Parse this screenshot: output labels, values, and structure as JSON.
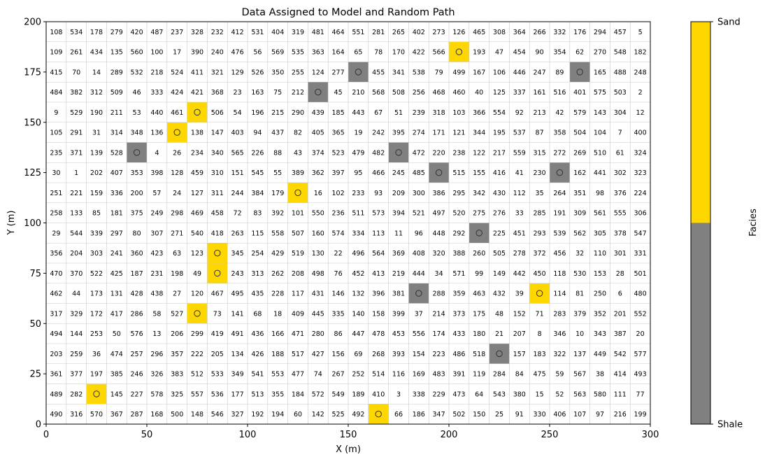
{
  "chart_data": {
    "type": "heatmap",
    "title": "Data Assigned to Model and Random Path",
    "xlabel": "X (m)",
    "ylabel": "Y (m)",
    "xlim": [
      0,
      300
    ],
    "ylim": [
      0,
      200
    ],
    "xticks": [
      "0",
      "50",
      "100",
      "150",
      "200",
      "250",
      "300"
    ],
    "yticks": [
      "0",
      "25",
      "50",
      "75",
      "100",
      "125",
      "150",
      "175",
      "200"
    ],
    "cell_size": 10,
    "ncols": 30,
    "nrows": 20,
    "grid": true,
    "random_path_order_rows_top_to_bottom": [
      [
        108,
        534,
        178,
        279,
        420,
        487,
        237,
        328,
        232,
        412,
        531,
        404,
        319,
        481,
        464,
        551,
        281,
        265,
        402,
        273,
        126,
        465,
        308,
        364,
        266,
        332,
        176,
        294,
        457,
        5
      ],
      [
        109,
        261,
        434,
        135,
        560,
        100,
        17,
        390,
        240,
        476,
        56,
        569,
        535,
        363,
        164,
        65,
        78,
        170,
        422,
        566,
        null,
        193,
        47,
        454,
        90,
        354,
        62,
        270,
        548,
        182
      ],
      [
        415,
        70,
        14,
        289,
        532,
        218,
        524,
        411,
        321,
        129,
        526,
        350,
        255,
        124,
        277,
        null,
        455,
        341,
        538,
        79,
        499,
        167,
        106,
        446,
        247,
        89,
        null,
        165,
        488,
        248
      ],
      [
        484,
        382,
        312,
        509,
        46,
        333,
        424,
        421,
        368,
        23,
        163,
        75,
        212,
        null,
        45,
        210,
        568,
        508,
        256,
        468,
        460,
        40,
        125,
        337,
        161,
        516,
        401,
        575,
        503,
        2
      ],
      [
        9,
        529,
        190,
        211,
        53,
        440,
        461,
        null,
        506,
        54,
        196,
        215,
        290,
        439,
        185,
        443,
        67,
        51,
        239,
        318,
        103,
        366,
        554,
        92,
        213,
        42,
        579,
        143,
        304,
        12
      ],
      [
        105,
        291,
        31,
        314,
        348,
        136,
        null,
        138,
        147,
        403,
        94,
        437,
        82,
        405,
        365,
        19,
        242,
        395,
        274,
        171,
        121,
        344,
        195,
        537,
        87,
        358,
        504,
        104,
        7,
        400
      ],
      [
        235,
        371,
        139,
        528,
        null,
        4,
        26,
        234,
        340,
        565,
        226,
        88,
        43,
        374,
        523,
        479,
        482,
        null,
        472,
        220,
        238,
        122,
        217,
        559,
        315,
        272,
        269,
        510,
        61,
        324
      ],
      [
        30,
        1,
        202,
        407,
        353,
        398,
        128,
        459,
        310,
        151,
        545,
        55,
        389,
        362,
        397,
        95,
        466,
        245,
        485,
        null,
        515,
        155,
        416,
        41,
        230,
        null,
        162,
        441,
        302,
        323
      ],
      [
        251,
        221,
        159,
        336,
        200,
        57,
        24,
        127,
        311,
        244,
        384,
        179,
        null,
        16,
        102,
        233,
        93,
        209,
        300,
        386,
        295,
        342,
        430,
        112,
        35,
        264,
        351,
        98,
        376,
        224
      ],
      [
        258,
        133,
        85,
        181,
        375,
        249,
        298,
        469,
        458,
        72,
        83,
        392,
        101,
        550,
        236,
        511,
        573,
        394,
        521,
        497,
        520,
        275,
        276,
        33,
        285,
        191,
        309,
        561,
        555,
        306
      ],
      [
        29,
        544,
        339,
        297,
        80,
        307,
        271,
        540,
        418,
        263,
        115,
        558,
        507,
        160,
        574,
        334,
        113,
        11,
        96,
        448,
        292,
        null,
        225,
        451,
        293,
        539,
        562,
        305,
        378,
        547
      ],
      [
        356,
        204,
        303,
        241,
        360,
        423,
        63,
        123,
        null,
        345,
        254,
        429,
        519,
        130,
        22,
        496,
        564,
        369,
        408,
        320,
        388,
        260,
        505,
        278,
        372,
        456,
        32,
        110,
        301,
        331
      ],
      [
        470,
        370,
        522,
        425,
        187,
        231,
        198,
        49,
        null,
        243,
        313,
        262,
        208,
        498,
        76,
        452,
        413,
        219,
        444,
        34,
        571,
        99,
        149,
        442,
        450,
        118,
        530,
        153,
        28,
        501
      ],
      [
        462,
        44,
        173,
        131,
        428,
        438,
        27,
        120,
        467,
        495,
        435,
        228,
        117,
        431,
        146,
        132,
        396,
        381,
        null,
        288,
        359,
        463,
        432,
        39,
        null,
        114,
        81,
        250,
        6,
        480
      ],
      [
        317,
        329,
        172,
        417,
        286,
        58,
        527,
        null,
        73,
        141,
        68,
        18,
        409,
        445,
        335,
        140,
        158,
        399,
        37,
        214,
        373,
        175,
        48,
        152,
        71,
        283,
        379,
        352,
        201,
        552
      ],
      [
        494,
        144,
        253,
        50,
        576,
        13,
        206,
        299,
        419,
        491,
        436,
        166,
        471,
        280,
        86,
        447,
        478,
        453,
        556,
        174,
        433,
        180,
        21,
        207,
        8,
        346,
        10,
        343,
        387,
        20
      ],
      [
        203,
        259,
        36,
        474,
        257,
        296,
        357,
        222,
        205,
        134,
        426,
        188,
        517,
        427,
        156,
        69,
        268,
        393,
        154,
        223,
        486,
        518,
        null,
        157,
        183,
        322,
        137,
        449,
        542,
        577
      ],
      [
        361,
        377,
        197,
        385,
        246,
        326,
        383,
        512,
        533,
        349,
        541,
        553,
        477,
        74,
        267,
        252,
        514,
        116,
        169,
        483,
        391,
        119,
        284,
        84,
        475,
        59,
        567,
        38,
        414,
        493
      ],
      [
        489,
        282,
        null,
        145,
        227,
        578,
        325,
        557,
        536,
        177,
        513,
        355,
        184,
        572,
        549,
        189,
        410,
        3,
        338,
        229,
        473,
        64,
        543,
        380,
        15,
        52,
        563,
        580,
        111,
        77
      ],
      [
        490,
        316,
        570,
        367,
        287,
        168,
        500,
        148,
        546,
        327,
        192,
        194,
        60,
        142,
        525,
        492,
        null,
        66,
        186,
        347,
        502,
        150,
        25,
        91,
        330,
        406,
        107,
        97,
        216,
        199
      ]
    ],
    "data_points": [
      {
        "x": 205,
        "y": 185,
        "facies": "Sand"
      },
      {
        "x": 155,
        "y": 175,
        "facies": "Shale"
      },
      {
        "x": 265,
        "y": 175,
        "facies": "Shale"
      },
      {
        "x": 135,
        "y": 165,
        "facies": "Shale"
      },
      {
        "x": 75,
        "y": 155,
        "facies": "Sand"
      },
      {
        "x": 65,
        "y": 145,
        "facies": "Sand"
      },
      {
        "x": 45,
        "y": 135,
        "facies": "Shale"
      },
      {
        "x": 175,
        "y": 135,
        "facies": "Shale"
      },
      {
        "x": 195,
        "y": 125,
        "facies": "Shale"
      },
      {
        "x": 255,
        "y": 125,
        "facies": "Shale"
      },
      {
        "x": 125,
        "y": 115,
        "facies": "Sand"
      },
      {
        "x": 215,
        "y": 95,
        "facies": "Shale"
      },
      {
        "x": 85,
        "y": 85,
        "facies": "Sand"
      },
      {
        "x": 85,
        "y": 75,
        "facies": "Sand"
      },
      {
        "x": 185,
        "y": 65,
        "facies": "Shale"
      },
      {
        "x": 245,
        "y": 65,
        "facies": "Sand"
      },
      {
        "x": 75,
        "y": 55,
        "facies": "Sand"
      },
      {
        "x": 225,
        "y": 35,
        "facies": "Shale"
      },
      {
        "x": 25,
        "y": 15,
        "facies": "Sand"
      },
      {
        "x": 165,
        "y": 5,
        "facies": "Sand"
      }
    ],
    "colorbar": {
      "label": "Facies",
      "categories": [
        "Shale",
        "Sand"
      ],
      "colors": {
        "Shale": "#808080",
        "Sand": "#ffd700"
      }
    }
  }
}
